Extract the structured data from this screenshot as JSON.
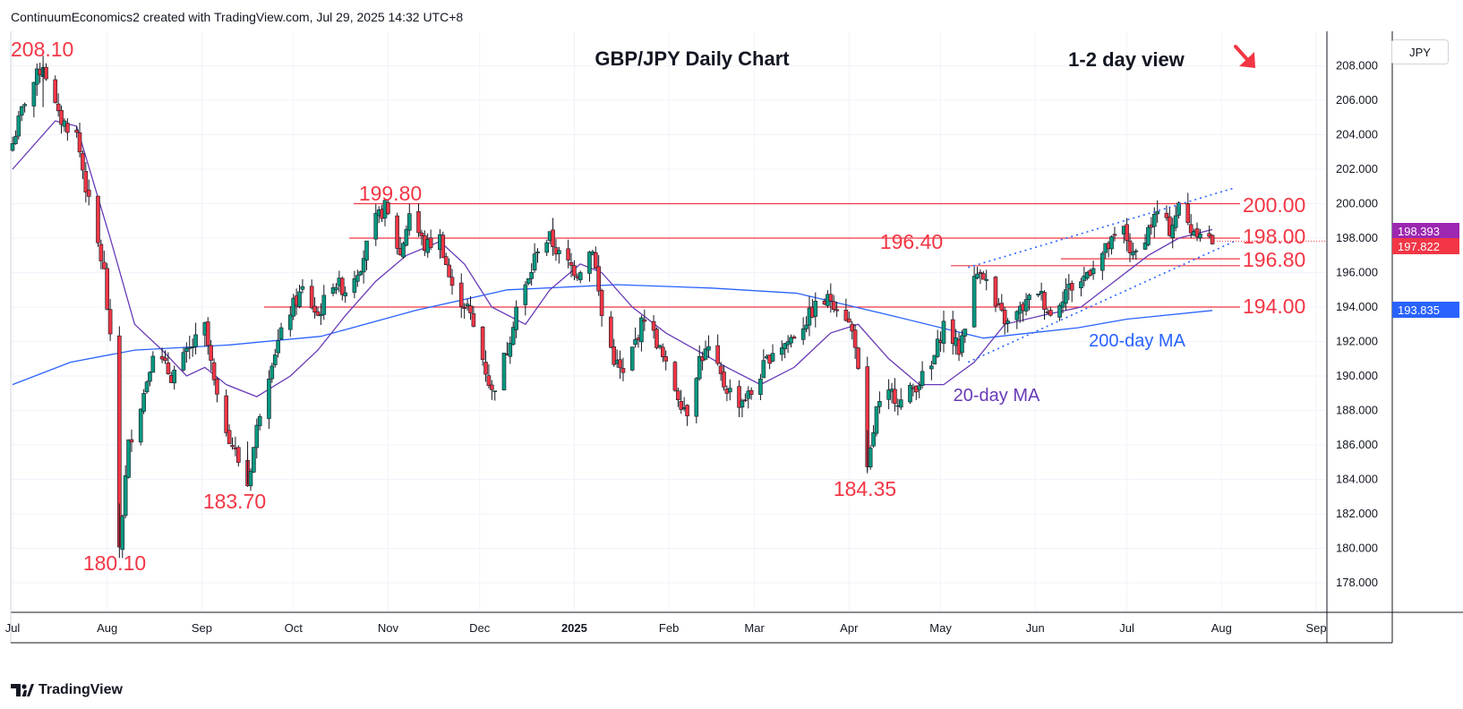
{
  "header": {
    "text": "ContinuumEconomics2 created with TradingView.com, Jul 29, 2025 14:32 UTC+8"
  },
  "brand": {
    "name": "TradingView"
  },
  "price_axis": {
    "currency": "JPY",
    "current_price_label": "197.822",
    "second_price_label": "198.393",
    "ma200_label": "193.835"
  },
  "colors": {
    "bull": "#089981",
    "bear": "#f23645",
    "ma20": "#673ab7",
    "ma200": "#2962ff",
    "annotation": "#f23645",
    "channel": "#2962ff",
    "level_line": "#f23645"
  },
  "chart_data": {
    "type": "candlestick",
    "title": "GBP/JPY Daily Chart",
    "subtitle": "1-2 day view",
    "ylim": [
      176.5,
      210.5
    ],
    "y_ticks": [
      "178.000",
      "180.000",
      "182.000",
      "184.000",
      "186.000",
      "188.000",
      "190.000",
      "192.000",
      "194.000",
      "196.000",
      "198.000",
      "200.000",
      "202.000",
      "204.000",
      "206.000",
      "208.000"
    ],
    "x_ticks": [
      "Jul",
      "Aug",
      "Sep",
      "Oct",
      "Nov",
      "Dec",
      "2025",
      "Feb",
      "Mar",
      "Apr",
      "May",
      "Jun",
      "Jul",
      "Aug",
      "Sep"
    ],
    "horizontal_levels": [
      {
        "price": 200.0,
        "label": "200.00"
      },
      {
        "price": 198.0,
        "label": "198.00"
      },
      {
        "price": 196.8,
        "label": "196.80"
      },
      {
        "price": 196.4,
        "label": ""
      },
      {
        "price": 194.0,
        "label": "194.00"
      }
    ],
    "swing_labels": [
      "208.10",
      "180.10",
      "183.70",
      "199.80",
      "184.35",
      "196.40"
    ],
    "ma_labels": {
      "ma200": "200-day MA",
      "ma20": "20-day MA"
    },
    "price_path": [
      [
        "2024-07-01",
        203.5
      ],
      [
        "2024-07-05",
        206.0
      ],
      [
        "2024-07-11",
        208.1
      ],
      [
        "2024-07-16",
        205.0
      ],
      [
        "2024-07-22",
        204.0
      ],
      [
        "2024-07-26",
        200.0
      ],
      [
        "2024-07-31",
        196.0
      ],
      [
        "2024-08-02",
        192.0
      ],
      [
        "2024-08-05",
        180.1
      ],
      [
        "2024-08-08",
        186.0
      ],
      [
        "2024-08-13",
        189.0
      ],
      [
        "2024-08-16",
        191.5
      ],
      [
        "2024-08-22",
        190.0
      ],
      [
        "2024-08-28",
        191.5
      ],
      [
        "2024-09-02",
        192.8
      ],
      [
        "2024-09-06",
        188.5
      ],
      [
        "2024-09-11",
        186.0
      ],
      [
        "2024-09-16",
        183.7
      ],
      [
        "2024-09-20",
        188.0
      ],
      [
        "2024-09-24",
        191.0
      ],
      [
        "2024-09-30",
        193.8
      ],
      [
        "2024-10-04",
        195.0
      ],
      [
        "2024-10-09",
        193.5
      ],
      [
        "2024-10-14",
        195.5
      ],
      [
        "2024-10-18",
        195.0
      ],
      [
        "2024-10-23",
        196.5
      ],
      [
        "2024-10-28",
        199.0
      ],
      [
        "2024-10-31",
        199.8
      ],
      [
        "2024-11-05",
        197.0
      ],
      [
        "2024-11-08",
        199.5
      ],
      [
        "2024-11-13",
        197.5
      ],
      [
        "2024-11-18",
        198.0
      ],
      [
        "2024-11-22",
        195.0
      ],
      [
        "2024-11-27",
        194.0
      ],
      [
        "2024-12-02",
        191.0
      ],
      [
        "2024-12-05",
        189.0
      ],
      [
        "2024-12-10",
        191.5
      ],
      [
        "2024-12-13",
        194.0
      ],
      [
        "2024-12-17",
        195.5
      ],
      [
        "2024-12-20",
        197.5
      ],
      [
        "2024-12-24",
        198.0
      ],
      [
        "2024-12-27",
        197.0
      ],
      [
        "2025-01-02",
        196.0
      ],
      [
        "2025-01-07",
        197.5
      ],
      [
        "2025-01-10",
        193.5
      ],
      [
        "2025-01-14",
        191.0
      ],
      [
        "2025-01-17",
        190.0
      ],
      [
        "2025-01-21",
        192.0
      ],
      [
        "2025-01-24",
        193.5
      ],
      [
        "2025-01-28",
        192.0
      ],
      [
        "2025-01-31",
        190.5
      ],
      [
        "2025-02-05",
        188.5
      ],
      [
        "2025-02-07",
        188.0
      ],
      [
        "2025-02-11",
        191.0
      ],
      [
        "2025-02-14",
        191.5
      ],
      [
        "2025-02-19",
        189.5
      ],
      [
        "2025-02-24",
        188.5
      ],
      [
        "2025-02-28",
        189.0
      ],
      [
        "2025-03-04",
        190.5
      ],
      [
        "2025-03-07",
        191.5
      ],
      [
        "2025-03-12",
        192.0
      ],
      [
        "2025-03-17",
        193.0
      ],
      [
        "2025-03-21",
        194.0
      ],
      [
        "2025-03-26",
        194.5
      ],
      [
        "2025-03-31",
        193.5
      ],
      [
        "2025-04-03",
        192.0
      ],
      [
        "2025-04-07",
        184.35
      ],
      [
        "2025-04-10",
        188.0
      ],
      [
        "2025-04-15",
        189.0
      ],
      [
        "2025-04-18",
        188.5
      ],
      [
        "2025-04-23",
        189.5
      ],
      [
        "2025-04-28",
        190.5
      ],
      [
        "2025-05-02",
        193.0
      ],
      [
        "2025-05-07",
        191.5
      ],
      [
        "2025-05-12",
        195.5
      ],
      [
        "2025-05-14",
        196.4
      ],
      [
        "2025-05-19",
        194.0
      ],
      [
        "2025-05-23",
        193.0
      ],
      [
        "2025-05-28",
        194.0
      ],
      [
        "2025-06-02",
        195.0
      ],
      [
        "2025-06-06",
        193.5
      ],
      [
        "2025-06-11",
        195.0
      ],
      [
        "2025-06-16",
        195.5
      ],
      [
        "2025-06-20",
        196.5
      ],
      [
        "2025-06-25",
        197.5
      ],
      [
        "2025-06-30",
        198.5
      ],
      [
        "2025-07-03",
        196.8
      ],
      [
        "2025-07-08",
        198.5
      ],
      [
        "2025-07-11",
        199.5
      ],
      [
        "2025-07-15",
        198.5
      ],
      [
        "2025-07-18",
        199.8
      ],
      [
        "2025-07-22",
        198.5
      ],
      [
        "2025-07-25",
        198.5
      ],
      [
        "2025-07-29",
        197.8
      ]
    ],
    "ma20_path": [
      [
        "2024-07-01",
        202.0
      ],
      [
        "2024-07-15",
        204.8
      ],
      [
        "2024-07-22",
        204.5
      ],
      [
        "2024-08-02",
        198.0
      ],
      [
        "2024-08-10",
        193.0
      ],
      [
        "2024-08-19",
        191.5
      ],
      [
        "2024-08-27",
        190.0
      ],
      [
        "2024-09-02",
        190.5
      ],
      [
        "2024-09-09",
        189.5
      ],
      [
        "2024-09-19",
        188.8
      ],
      [
        "2024-09-30",
        190.0
      ],
      [
        "2024-10-09",
        191.5
      ],
      [
        "2024-10-18",
        193.5
      ],
      [
        "2024-10-28",
        195.5
      ],
      [
        "2024-11-07",
        197.0
      ],
      [
        "2024-11-18",
        197.8
      ],
      [
        "2024-11-26",
        196.5
      ],
      [
        "2024-12-05",
        194.0
      ],
      [
        "2024-12-16",
        193.0
      ],
      [
        "2024-12-24",
        195.0
      ],
      [
        "2025-01-03",
        196.5
      ],
      [
        "2025-01-10",
        196.0
      ],
      [
        "2025-01-20",
        194.0
      ],
      [
        "2025-01-31",
        192.5
      ],
      [
        "2025-02-10",
        191.5
      ],
      [
        "2025-02-20",
        190.5
      ],
      [
        "2025-03-03",
        189.5
      ],
      [
        "2025-03-14",
        190.5
      ],
      [
        "2025-03-26",
        192.5
      ],
      [
        "2025-04-04",
        193.0
      ],
      [
        "2025-04-14",
        191.0
      ],
      [
        "2025-04-24",
        189.5
      ],
      [
        "2025-05-02",
        189.5
      ],
      [
        "2025-05-12",
        190.8
      ],
      [
        "2025-05-22",
        193.0
      ],
      [
        "2025-06-03",
        193.5
      ],
      [
        "2025-06-16",
        194.0
      ],
      [
        "2025-06-27",
        195.5
      ],
      [
        "2025-07-08",
        197.0
      ],
      [
        "2025-07-18",
        198.0
      ],
      [
        "2025-07-29",
        198.5
      ]
    ],
    "ma200_path": [
      [
        "2024-07-01",
        189.5
      ],
      [
        "2024-07-20",
        190.8
      ],
      [
        "2024-08-10",
        191.5
      ],
      [
        "2024-09-10",
        191.8
      ],
      [
        "2024-10-10",
        192.3
      ],
      [
        "2024-11-10",
        193.8
      ],
      [
        "2024-12-10",
        195.0
      ],
      [
        "2025-01-15",
        195.3
      ],
      [
        "2025-02-15",
        195.1
      ],
      [
        "2025-03-15",
        194.8
      ],
      [
        "2025-04-15",
        193.5
      ],
      [
        "2025-05-15",
        192.2
      ],
      [
        "2025-06-15",
        192.8
      ],
      [
        "2025-07-01",
        193.3
      ],
      [
        "2025-07-29",
        193.8
      ]
    ],
    "channel": {
      "upper": [
        [
          "2025-05-10",
          196.3
        ],
        [
          "2025-08-05",
          200.9
        ]
      ],
      "lower": [
        [
          "2025-05-10",
          190.8
        ],
        [
          "2025-08-05",
          197.8
        ]
      ]
    }
  }
}
